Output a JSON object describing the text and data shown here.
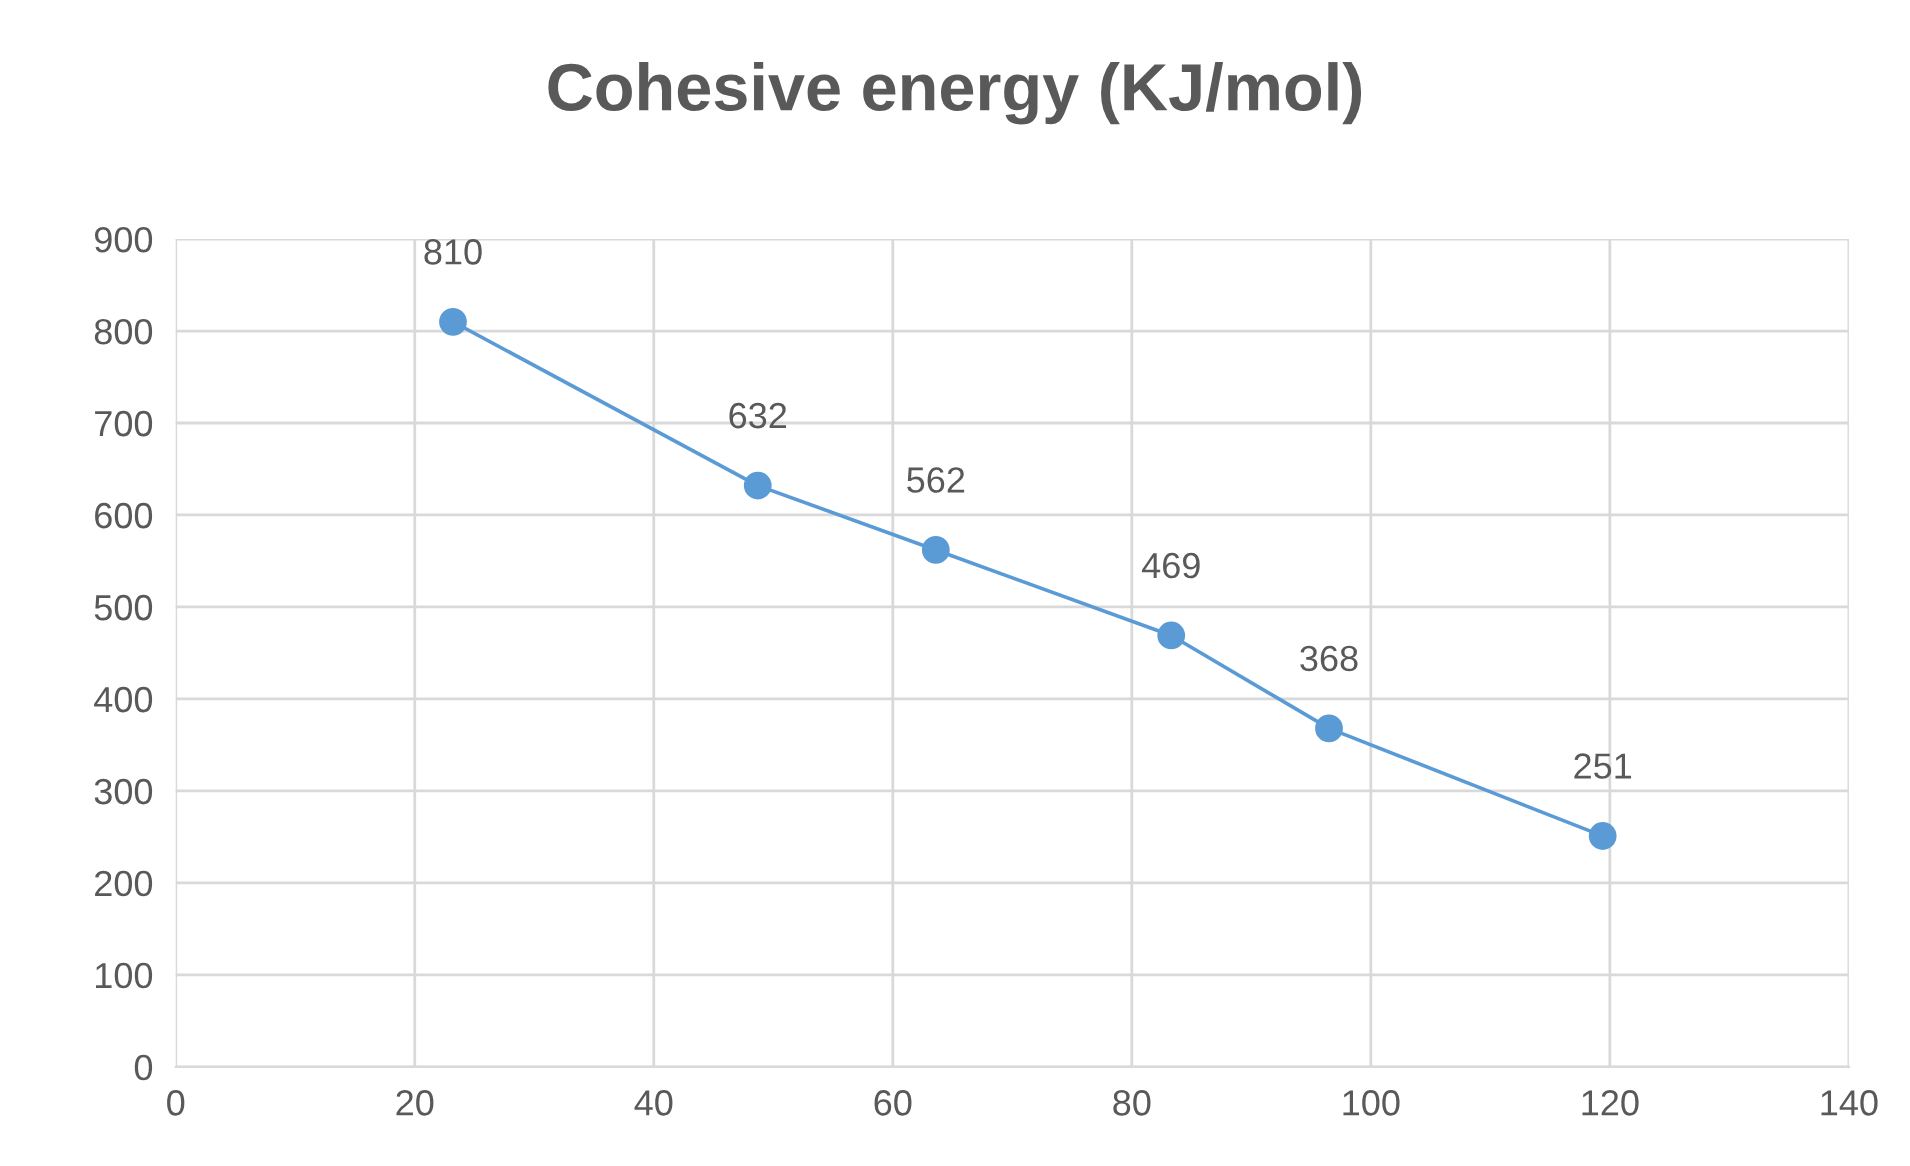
{
  "chart_data": {
    "type": "line",
    "title": "Cohesive energy (KJ/mol)",
    "x": [
      23.2,
      48.7,
      63.6,
      83.3,
      96.5,
      119.4
    ],
    "series": [
      {
        "color": "#5b9bd5",
        "values": [
          810,
          632,
          562,
          469,
          368,
          251
        ]
      }
    ],
    "xlim": [
      0,
      140
    ],
    "xticks": [
      0,
      20,
      40,
      60,
      80,
      100,
      120,
      140
    ],
    "ylim": [
      0,
      900
    ],
    "yticks": [
      0,
      100,
      200,
      300,
      400,
      500,
      600,
      700,
      800,
      900
    ],
    "grid": true,
    "marker": "circle",
    "line_style": "solid",
    "data_labels": true
  }
}
